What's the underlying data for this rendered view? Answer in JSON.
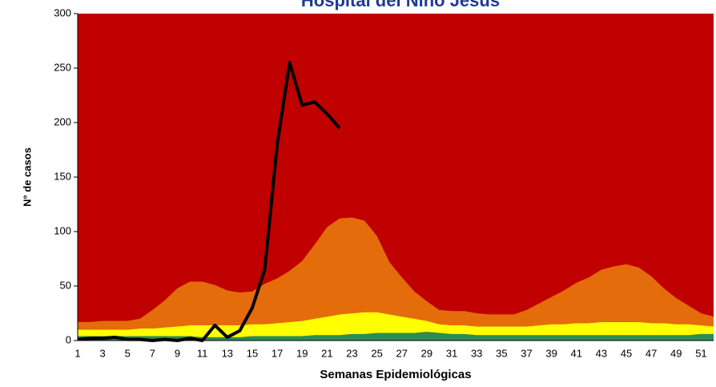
{
  "chart_data": {
    "type": "stacked-area-line",
    "title": "Hospital del Niño Jesús",
    "x_label": "Semanas Epidemiológicas",
    "y_label": "N° de casos",
    "plot_background": "#c00000",
    "categories": [
      1,
      null,
      3,
      null,
      5,
      null,
      7,
      null,
      9,
      null,
      11,
      null,
      13,
      null,
      15,
      null,
      17,
      null,
      19,
      null,
      21,
      null,
      23,
      null,
      25,
      null,
      27,
      null,
      29,
      null,
      31,
      null,
      33,
      null,
      35,
      null,
      37,
      null,
      39,
      null,
      41,
      null,
      43,
      null,
      45,
      null,
      47,
      null,
      49,
      null,
      51,
      null
    ],
    "ylim": [
      0,
      300
    ],
    "yticks": [
      0,
      50,
      100,
      150,
      200,
      250,
      300
    ],
    "series": [
      {
        "type": "area",
        "color": "#2e8b57",
        "values": [
          4,
          4,
          4,
          4,
          4,
          4,
          4,
          4,
          4,
          4,
          3,
          3,
          3,
          3,
          4,
          4,
          4,
          4,
          4,
          5,
          5,
          5,
          6,
          6,
          7,
          7,
          7,
          7,
          8,
          7,
          6,
          6,
          5,
          5,
          5,
          5,
          5,
          5,
          5,
          5,
          5,
          5,
          5,
          5,
          5,
          5,
          5,
          5,
          5,
          5,
          6,
          6
        ]
      },
      {
        "type": "area",
        "color": "#ffff00",
        "values": [
          6,
          6,
          6,
          6,
          6,
          7,
          7,
          8,
          9,
          10,
          11,
          11,
          11,
          11,
          11,
          11,
          12,
          13,
          14,
          15,
          17,
          19,
          19,
          20,
          19,
          17,
          15,
          13,
          10,
          8,
          8,
          8,
          8,
          8,
          8,
          8,
          8,
          9,
          10,
          10,
          11,
          11,
          12,
          12,
          12,
          12,
          11,
          11,
          10,
          10,
          8,
          7
        ]
      },
      {
        "type": "area",
        "color": "#e46c0a",
        "values": [
          7,
          7,
          8,
          8,
          8,
          9,
          17,
          25,
          35,
          40,
          40,
          37,
          32,
          30,
          30,
          37,
          41,
          47,
          55,
          68,
          82,
          88,
          88,
          84,
          70,
          48,
          36,
          25,
          18,
          13,
          13,
          13,
          12,
          11,
          11,
          11,
          15,
          20,
          25,
          31,
          37,
          42,
          48,
          51,
          53,
          50,
          43,
          32,
          24,
          17,
          11,
          9
        ]
      },
      {
        "type": "line",
        "color": "#000000",
        "values": [
          1,
          2,
          2,
          3,
          1,
          1,
          0,
          1,
          0,
          2,
          0,
          14,
          3,
          9,
          30,
          65,
          180,
          255,
          216,
          219,
          208,
          195,
          null,
          null,
          null,
          null,
          null,
          null,
          null,
          null,
          null,
          null,
          null,
          null,
          null,
          null,
          null,
          null,
          null,
          null,
          null,
          null,
          null,
          null,
          null,
          null,
          null,
          null,
          null,
          null,
          null,
          null
        ]
      }
    ]
  }
}
